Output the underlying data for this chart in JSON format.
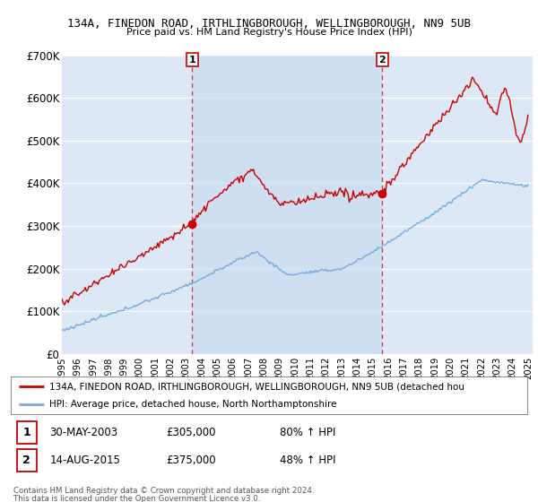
{
  "title": "134A, FINEDON ROAD, IRTHLINGBOROUGH, WELLINGBOROUGH, NN9 5UB",
  "subtitle": "Price paid vs. HM Land Registry's House Price Index (HPI)",
  "ylim": [
    0,
    700000
  ],
  "yticks": [
    0,
    100000,
    200000,
    300000,
    400000,
    500000,
    600000,
    700000
  ],
  "ytick_labels": [
    "£0",
    "£100K",
    "£200K",
    "£300K",
    "£400K",
    "£500K",
    "£600K",
    "£700K"
  ],
  "bg_color": "#ffffff",
  "plot_bg_color": "#dce8f5",
  "grid_color": "#ffffff",
  "xlim_start": 1995,
  "xlim_end": 2025.3,
  "sale1_year": 2003.38,
  "sale1_price": 305000,
  "sale2_year": 2015.62,
  "sale2_price": 375000,
  "legend_red_label": "134A, FINEDON ROAD, IRTHLINGBOROUGH, WELLINGBOROUGH, NN9 5UB (detached hou",
  "legend_blue_label": "HPI: Average price, detached house, North Northamptonshire",
  "sale1_date": "30-MAY-2003",
  "sale1_price_str": "£305,000",
  "sale1_pct": "80% ↑ HPI",
  "sale2_date": "14-AUG-2015",
  "sale2_price_str": "£375,000",
  "sale2_pct": "48% ↑ HPI",
  "footer1": "Contains HM Land Registry data © Crown copyright and database right 2024.",
  "footer2": "This data is licensed under the Open Government Licence v3.0.",
  "red_color": "#cc0000",
  "blue_color": "#7aaadd"
}
